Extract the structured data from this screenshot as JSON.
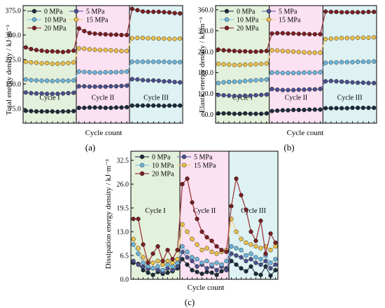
{
  "chart_data": [
    {
      "panel_label": "(a)",
      "type": "line",
      "xlabel": "Cycle count",
      "ylabel": "Total energy density / kJ·m⁻³",
      "yticks": [
        "75.0",
        "150.0",
        "225.0",
        "300.0",
        "375.0"
      ],
      "ylim": [
        30,
        390
      ],
      "regions": [
        {
          "label": "Cycle I",
          "color": "#e3f1dc"
        },
        {
          "label": "Cycle II",
          "color": "#fbe1f1"
        },
        {
          "label": "Cycle III",
          "color": "#def2f3"
        }
      ],
      "legend_placement": "top-left",
      "series": [
        {
          "name": "0 MPa",
          "color": "#1c2b3a",
          "line": "#3a4a5a",
          "values": [
            68,
            67,
            66,
            66,
            66,
            66,
            65,
            66,
            66,
            67,
            77,
            77,
            78,
            78,
            78,
            77,
            77,
            78,
            78,
            79,
            84,
            84,
            84,
            84,
            84,
            84,
            83,
            84,
            84,
            84
          ]
        },
        {
          "name": "5 MPa",
          "color": "#4a4f8c",
          "line": "#6a70b0",
          "values": [
            124,
            122,
            121,
            121,
            120,
            120,
            120,
            121,
            122,
            123,
            143,
            143,
            142,
            142,
            142,
            142,
            143,
            143,
            144,
            145,
            165,
            164,
            162,
            161,
            161,
            160,
            158,
            158,
            156,
            155
          ]
        },
        {
          "name": "10 MPa",
          "color": "#6eb6dc",
          "line": "#8ec8e8",
          "values": [
            164,
            162,
            161,
            160,
            160,
            159,
            160,
            160,
            160,
            161,
            188,
            187,
            186,
            185,
            185,
            186,
            186,
            186,
            187,
            188,
            218,
            218,
            218,
            218,
            218,
            218,
            218,
            217,
            217,
            217
          ]
        },
        {
          "name": "15 MPa",
          "color": "#ecc14a",
          "line": "#f2d27a",
          "values": [
            218,
            216,
            215,
            213,
            214,
            212,
            212,
            213,
            214,
            216,
            259,
            258,
            256,
            255,
            254,
            254,
            253,
            252,
            251,
            251,
            290,
            291,
            291,
            290,
            290,
            289,
            289,
            288,
            288,
            289
          ]
        },
        {
          "name": "20 MPa",
          "color": "#7a1e22",
          "line": "#9e3a3e",
          "values": [
            262,
            257,
            254,
            252,
            250,
            250,
            249,
            248,
            250,
            252,
            320,
            312,
            306,
            304,
            303,
            302,
            301,
            301,
            300,
            300,
            380,
            376,
            372,
            371,
            371,
            371,
            370,
            369,
            367,
            366
          ]
        }
      ]
    },
    {
      "panel_label": "(b)",
      "type": "line",
      "xlabel": "Cycle count",
      "ylabel": "Elastic energy density / kJ·m⁻³",
      "yticks": [
        "60.0",
        "120.0",
        "180.0",
        "240.0",
        "300.0",
        "360.0"
      ],
      "ylim": [
        35,
        372
      ],
      "regions": [
        {
          "label": "Cycle I",
          "color": "#e3f1dc"
        },
        {
          "label": "Cycle II",
          "color": "#fbe1f1"
        },
        {
          "label": "Cycle III",
          "color": "#def2f3"
        }
      ],
      "legend_placement": "top-left",
      "series": [
        {
          "name": "0 MPa",
          "color": "#1c2b3a",
          "line": "#3a4a5a",
          "values": [
            63,
            63,
            63,
            62,
            62,
            63,
            62,
            62,
            62,
            63,
            70,
            71,
            72,
            72,
            73,
            73,
            73,
            74,
            74,
            74,
            78,
            78,
            78,
            78,
            78,
            79,
            79,
            79,
            79,
            79
          ]
        },
        {
          "name": "5 MPa",
          "color": "#4a4f8c",
          "line": "#6a70b0",
          "values": [
            116,
            115,
            114,
            113,
            113,
            114,
            114,
            115,
            116,
            117,
            133,
            131,
            130,
            130,
            130,
            131,
            131,
            132,
            132,
            133,
            155,
            156,
            155,
            154,
            153,
            152,
            151,
            151,
            150,
            150
          ]
        },
        {
          "name": "10 MPa",
          "color": "#6eb6dc",
          "line": "#8ec8e8",
          "values": [
            150,
            152,
            153,
            154,
            154,
            156,
            157,
            158,
            159,
            160,
            180,
            180,
            179,
            179,
            179,
            179,
            180,
            180,
            180,
            181,
            208,
            209,
            209,
            210,
            210,
            210,
            211,
            211,
            211,
            212
          ]
        },
        {
          "name": "15 MPa",
          "color": "#ecc14a",
          "line": "#f2d27a",
          "values": [
            205,
            204,
            203,
            202,
            202,
            203,
            203,
            204,
            205,
            206,
            244,
            243,
            242,
            241,
            240,
            239,
            238,
            237,
            237,
            237,
            276,
            277,
            278,
            279,
            279,
            279,
            280,
            280,
            280,
            281
          ]
        },
        {
          "name": "20 MPa",
          "color": "#7a1e22",
          "line": "#9e3a3e",
          "values": [
            246,
            244,
            243,
            242,
            241,
            241,
            240,
            240,
            241,
            242,
            292,
            293,
            293,
            292,
            292,
            291,
            291,
            290,
            290,
            290,
            355,
            354,
            354,
            353,
            353,
            353,
            353,
            353,
            354,
            354
          ]
        }
      ]
    },
    {
      "panel_label": "(c)",
      "type": "line",
      "xlabel": "Cycle count",
      "ylabel": "Dissipation energy density / kJ·m⁻³",
      "yticks": [
        "0.0",
        "6.5",
        "13.0",
        "19.5",
        "26.0",
        "32.5"
      ],
      "ylim": [
        0,
        35
      ],
      "regions": [
        {
          "label": "Cycle I",
          "color": "#e3f1dc"
        },
        {
          "label": "Cycle II",
          "color": "#fbe1f1"
        },
        {
          "label": "Cycle III",
          "color": "#def2f3"
        }
      ],
      "legend_placement": "top-left",
      "series": [
        {
          "name": "0 MPa",
          "color": "#1c2b3a",
          "line": "#3a4a5a",
          "values": [
            4.5,
            4.2,
            2.5,
            1.8,
            1.2,
            2.0,
            1.5,
            1.8,
            2.2,
            3.0,
            5.5,
            4.0,
            2.5,
            2.0,
            1.5,
            2.0,
            1.8,
            1.2,
            2.2,
            3.0,
            5.0,
            4.0,
            3.0,
            2.2,
            3.5,
            1.5,
            1.2,
            3.5,
            1.0,
            2.5
          ]
        },
        {
          "name": "5 MPa",
          "color": "#4a4f8c",
          "line": "#6a70b0",
          "values": [
            5.0,
            4.0,
            3.5,
            2.8,
            3.0,
            2.5,
            2.0,
            3.0,
            2.5,
            3.5,
            7.5,
            6.0,
            5.0,
            3.5,
            4.0,
            3.0,
            3.5,
            2.5,
            3.5,
            2.5,
            7.0,
            6.5,
            6.0,
            5.0,
            5.5,
            4.5,
            4.0,
            5.0,
            3.0,
            4.0
          ]
        },
        {
          "name": "10 MPa",
          "color": "#6eb6dc",
          "line": "#8ec8e8",
          "values": [
            9.5,
            7.0,
            4.5,
            3.5,
            3.0,
            3.5,
            2.5,
            4.0,
            3.5,
            4.5,
            9.0,
            7.5,
            6.0,
            5.5,
            4.5,
            5.0,
            4.0,
            4.5,
            4.0,
            5.0,
            9.0,
            8.5,
            8.0,
            6.5,
            7.0,
            6.0,
            5.5,
            6.5,
            4.5,
            5.5
          ]
        },
        {
          "name": "15 MPa",
          "color": "#ecc14a",
          "line": "#f2d27a",
          "values": [
            11.0,
            8.5,
            6.0,
            5.0,
            4.5,
            5.0,
            4.0,
            5.0,
            4.5,
            5.5,
            15.0,
            13.0,
            11.0,
            9.5,
            8.0,
            8.5,
            7.5,
            7.0,
            7.5,
            8.0,
            16.5,
            13.0,
            11.0,
            10.0,
            9.5,
            9.0,
            8.5,
            9.0,
            8.0,
            9.0
          ]
        },
        {
          "name": "20 MPa",
          "color": "#7a1e22",
          "line": "#9e3a3e",
          "values": [
            16.5,
            16.5,
            9.5,
            4.5,
            7.0,
            9.0,
            5.0,
            8.0,
            5.5,
            8.0,
            26.0,
            27.5,
            21.0,
            16.5,
            13.0,
            11.5,
            10.5,
            9.0,
            8.0,
            7.5,
            20.0,
            27.5,
            23.0,
            19.0,
            13.0,
            10.5,
            16.0,
            7.0,
            12.5,
            10.0
          ]
        }
      ]
    }
  ]
}
